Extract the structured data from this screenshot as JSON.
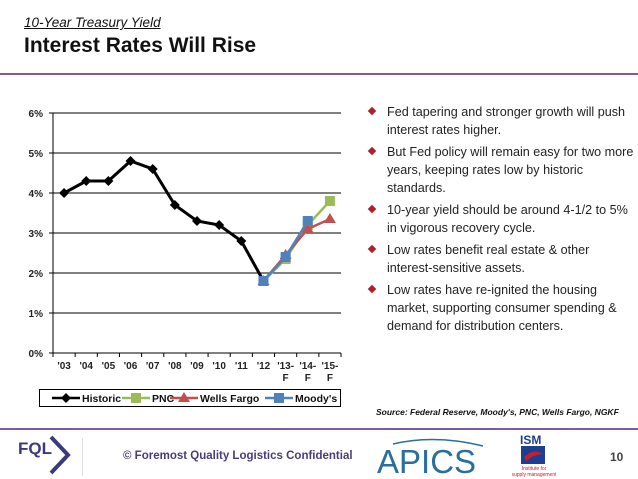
{
  "header": {
    "subtitle": "10-Year Treasury Yield",
    "title": "Interest Rates Will Rise"
  },
  "bullets": [
    "Fed tapering and stronger growth will push interest rates higher.",
    "But Fed policy will remain easy for two more years, keeping rates low by historic standards.",
    "10-year yield should be around 4-1/2 to 5% in vigorous recovery cycle.",
    "Low rates benefit real estate & other interest-sensitive assets.",
    "Low rates have re-ignited the housing market, supporting consumer spending & demand for distribution centers."
  ],
  "source": "Source: Federal Reserve, Moody's, PNC, Wells Fargo, NGKF",
  "footer": {
    "logo_text": "FQL",
    "copyright": "© Foremost Quality Logistics Confidential",
    "apics_logo": "APICS",
    "ism_logo": "ISM",
    "ism_sub": "Institute for supply management",
    "page_number": "10"
  },
  "chart_data": {
    "type": "line",
    "title": "10-Year Treasury Yield",
    "xlabel": "",
    "ylabel": "",
    "categories": [
      "'03",
      "'04",
      "'05",
      "'06",
      "'07",
      "'08",
      "'09",
      "'10",
      "'11",
      "'12",
      "'13-F",
      "'14-F",
      "'15-F"
    ],
    "yticks": [
      "0%",
      "1%",
      "2%",
      "3%",
      "4%",
      "5%",
      "6%"
    ],
    "ylim": [
      0,
      6
    ],
    "grid": true,
    "legend_position": "bottom",
    "series": [
      {
        "name": "Historic",
        "color": "#000000",
        "marker": "diamond",
        "values": [
          4.0,
          4.3,
          4.3,
          4.8,
          4.6,
          3.7,
          3.3,
          3.2,
          2.8,
          1.8,
          null,
          null,
          null
        ]
      },
      {
        "name": "PNC",
        "color": "#9bbb59",
        "marker": "square",
        "values": [
          null,
          null,
          null,
          null,
          null,
          null,
          null,
          null,
          null,
          1.8,
          2.35,
          3.2,
          3.8
        ]
      },
      {
        "name": "Wells Fargo",
        "color": "#c0504d",
        "marker": "triangle",
        "values": [
          null,
          null,
          null,
          null,
          null,
          null,
          null,
          null,
          null,
          1.8,
          2.45,
          3.1,
          3.35
        ]
      },
      {
        "name": "Moody's",
        "color": "#4f81bd",
        "marker": "square",
        "values": [
          null,
          null,
          null,
          null,
          null,
          null,
          null,
          null,
          null,
          1.8,
          2.4,
          3.3,
          null
        ]
      }
    ]
  }
}
